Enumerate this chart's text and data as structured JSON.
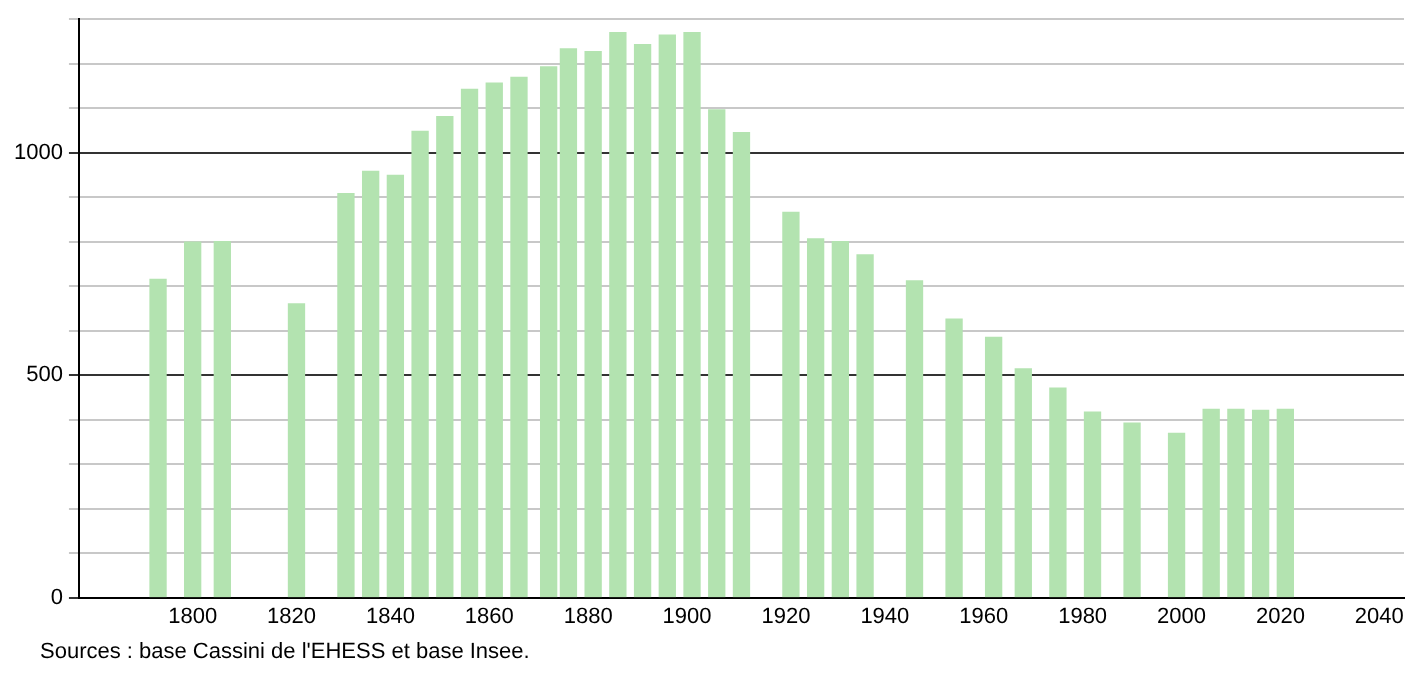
{
  "chart_data": {
    "type": "bar",
    "x": [
      1793,
      1800,
      1806,
      1821,
      1831,
      1836,
      1841,
      1846,
      1851,
      1856,
      1861,
      1866,
      1872,
      1876,
      1881,
      1886,
      1891,
      1896,
      1901,
      1906,
      1911,
      1921,
      1926,
      1931,
      1936,
      1946,
      1954,
      1962,
      1968,
      1975,
      1982,
      1990,
      1999,
      2006,
      2011,
      2016,
      2021
    ],
    "values": [
      715,
      799,
      800,
      660,
      908,
      958,
      949,
      1048,
      1081,
      1142,
      1156,
      1169,
      1193,
      1233,
      1227,
      1270,
      1243,
      1264,
      1270,
      1096,
      1045,
      866,
      806,
      800,
      770,
      712,
      626,
      585,
      514,
      471,
      417,
      392,
      369,
      423,
      423,
      421,
      423
    ],
    "color": "#b3e3b0",
    "xlim": [
      1777,
      2045
    ],
    "xticks": [
      1800,
      1820,
      1840,
      1860,
      1880,
      1900,
      1920,
      1940,
      1960,
      1980,
      2000,
      2020,
      2040
    ],
    "ylim": [
      0,
      1300
    ],
    "yticks": [
      0,
      {
        "value": 100,
        "label": null
      },
      {
        "value": 200,
        "label": null
      },
      {
        "value": 300,
        "label": null
      },
      {
        "value": 400,
        "label": null
      },
      500,
      {
        "value": 600,
        "label": null
      },
      {
        "value": 700,
        "label": null
      },
      {
        "value": 800,
        "label": null
      },
      {
        "value": 900,
        "label": null
      },
      1000,
      {
        "value": 1100,
        "label": null
      },
      {
        "value": 1200,
        "label": null
      },
      {
        "value": 1300,
        "label": null
      }
    ],
    "grid": "y",
    "annotations": [
      "Sources : base Cassini de l'EHESS et base Insee."
    ]
  }
}
